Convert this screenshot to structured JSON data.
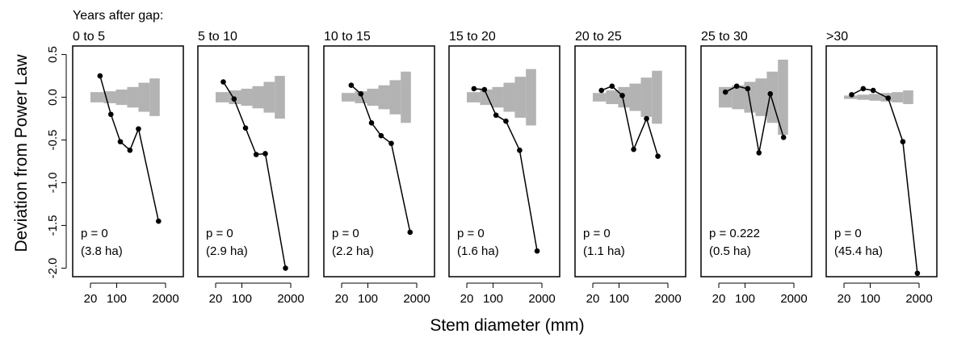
{
  "header": "Years after gap:",
  "ylabel": "Deviation from Power Law",
  "xlabel": "Stem diameter (mm)",
  "colors": {
    "bars": "#b3b3b3",
    "line": "#000000"
  },
  "chart_data": {
    "type": "line",
    "log_x": true,
    "xlim": [
      20,
      2000
    ],
    "ylim": [
      -2.1,
      0.6
    ],
    "x_ticks": [
      20,
      100,
      2000
    ],
    "y_ticks": [
      0.5,
      0,
      -0.5,
      -1,
      -1.5,
      -2
    ],
    "y_tick_labels": [
      "0.5",
      "0.0",
      "-0.5",
      "-1.0",
      "-1.5",
      "-2.0"
    ],
    "panels": [
      {
        "title": "0 to 5",
        "p_label": "p = 0",
        "area_label": "(3.8 ha)",
        "points": [
          [
            36,
            0.25
          ],
          [
            70,
            -0.2
          ],
          [
            125,
            -0.52
          ],
          [
            225,
            -0.62
          ],
          [
            380,
            -0.37
          ],
          [
            1300,
            -1.45
          ]
        ],
        "bars": [
          [
            20,
            45,
            0.06
          ],
          [
            45,
            95,
            0.07
          ],
          [
            95,
            190,
            0.09
          ],
          [
            190,
            380,
            0.12
          ],
          [
            380,
            750,
            0.17
          ],
          [
            750,
            1400,
            0.22
          ]
        ]
      },
      {
        "title": "5 to 10",
        "p_label": "p = 0",
        "area_label": "(2.9 ha)",
        "points": [
          [
            32,
            0.18
          ],
          [
            62,
            -0.02
          ],
          [
            125,
            -0.36
          ],
          [
            240,
            -0.67
          ],
          [
            420,
            -0.66
          ],
          [
            1450,
            -2.0
          ]
        ],
        "bars": [
          [
            20,
            45,
            0.06
          ],
          [
            45,
            95,
            0.08
          ],
          [
            95,
            190,
            0.1
          ],
          [
            190,
            380,
            0.13
          ],
          [
            380,
            750,
            0.18
          ],
          [
            750,
            1400,
            0.25
          ]
        ]
      },
      {
        "title": "10 to 15",
        "p_label": "p = 0",
        "area_label": "(2.2 ha)",
        "points": [
          [
            36,
            0.14
          ],
          [
            65,
            0.04
          ],
          [
            125,
            -0.3
          ],
          [
            225,
            -0.45
          ],
          [
            420,
            -0.54
          ],
          [
            1330,
            -1.58
          ]
        ],
        "bars": [
          [
            20,
            45,
            0.05
          ],
          [
            45,
            95,
            0.07
          ],
          [
            95,
            190,
            0.1
          ],
          [
            190,
            380,
            0.14
          ],
          [
            380,
            750,
            0.2
          ],
          [
            750,
            1400,
            0.3
          ]
        ]
      },
      {
        "title": "15 to 20",
        "p_label": "p = 0",
        "area_label": "(1.6 ha)",
        "points": [
          [
            31,
            0.1
          ],
          [
            59,
            0.09
          ],
          [
            120,
            -0.21
          ],
          [
            220,
            -0.28
          ],
          [
            510,
            -0.62
          ],
          [
            1490,
            -1.8
          ]
        ],
        "bars": [
          [
            20,
            45,
            0.06
          ],
          [
            45,
            95,
            0.09
          ],
          [
            95,
            190,
            0.12
          ],
          [
            190,
            380,
            0.17
          ],
          [
            380,
            750,
            0.24
          ],
          [
            750,
            1400,
            0.33
          ]
        ]
      },
      {
        "title": "20 to 25",
        "p_label": "p = 0",
        "area_label": "(1.1 ha)",
        "points": [
          [
            34,
            0.08
          ],
          [
            65,
            0.13
          ],
          [
            122,
            0.02
          ],
          [
            245,
            -0.61
          ],
          [
            540,
            -0.25
          ],
          [
            1080,
            -0.69
          ]
        ],
        "bars": [
          [
            20,
            45,
            0.05
          ],
          [
            45,
            95,
            0.08
          ],
          [
            95,
            190,
            0.12
          ],
          [
            190,
            380,
            0.16
          ],
          [
            380,
            750,
            0.23
          ],
          [
            750,
            1400,
            0.31
          ]
        ]
      },
      {
        "title": "25 to 30",
        "p_label": "p = 0.222",
        "area_label": "(0.5 ha)",
        "points": [
          [
            30,
            0.06
          ],
          [
            60,
            0.13
          ],
          [
            118,
            0.1
          ],
          [
            235,
            -0.65
          ],
          [
            470,
            0.04
          ],
          [
            1060,
            -0.47
          ]
        ],
        "bars": [
          [
            20,
            45,
            0.12
          ],
          [
            45,
            95,
            0.14
          ],
          [
            95,
            190,
            0.18
          ],
          [
            190,
            380,
            0.22
          ],
          [
            380,
            750,
            0.3
          ],
          [
            750,
            1400,
            0.44
          ]
        ]
      },
      {
        "title": ">30",
        "p_label": "p = 0",
        "area_label": "(45.4 ha)",
        "points": [
          [
            32,
            0.03
          ],
          [
            65,
            0.1
          ],
          [
            120,
            0.08
          ],
          [
            300,
            -0.01
          ],
          [
            740,
            -0.52
          ],
          [
            1800,
            -2.06
          ]
        ],
        "bars": [
          [
            20,
            45,
            0.02
          ],
          [
            45,
            95,
            0.03
          ],
          [
            95,
            190,
            0.04
          ],
          [
            190,
            380,
            0.05
          ],
          [
            380,
            750,
            0.06
          ],
          [
            750,
            1400,
            0.08
          ]
        ]
      }
    ]
  }
}
